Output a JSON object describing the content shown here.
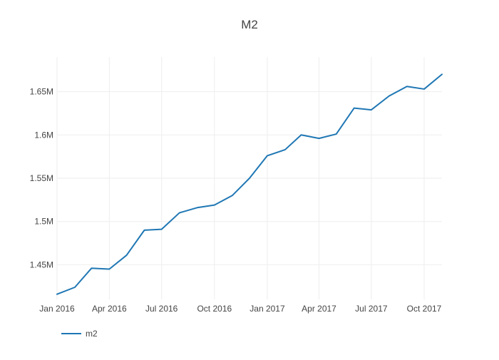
{
  "chart_data": {
    "type": "line",
    "title": "M2",
    "xlabel": "",
    "ylabel": "",
    "x_range": [
      "2016-01-01",
      "2017-11-01"
    ],
    "ylim": [
      1410000,
      1690000
    ],
    "grid": true,
    "legend_position": "bottom-left",
    "x_ticks": [
      {
        "date": "2016-01-01",
        "label": "Jan 2016"
      },
      {
        "date": "2016-04-01",
        "label": "Apr 2016"
      },
      {
        "date": "2016-07-01",
        "label": "Jul 2016"
      },
      {
        "date": "2016-10-01",
        "label": "Oct 2016"
      },
      {
        "date": "2017-01-01",
        "label": "Jan 2017"
      },
      {
        "date": "2017-04-01",
        "label": "Apr 2017"
      },
      {
        "date": "2017-07-01",
        "label": "Jul 2017"
      },
      {
        "date": "2017-10-01",
        "label": "Oct 2017"
      }
    ],
    "y_ticks": [
      {
        "value": 1450000,
        "label": "1.45M"
      },
      {
        "value": 1500000,
        "label": "1.5M"
      },
      {
        "value": 1550000,
        "label": "1.55M"
      },
      {
        "value": 1600000,
        "label": "1.6M"
      },
      {
        "value": 1650000,
        "label": "1.65M"
      }
    ],
    "series": [
      {
        "name": "m2",
        "color": "#1f77b4",
        "x": [
          "2016-01-01",
          "2016-02-01",
          "2016-03-01",
          "2016-04-01",
          "2016-05-01",
          "2016-06-01",
          "2016-07-01",
          "2016-08-01",
          "2016-09-01",
          "2016-10-01",
          "2016-11-01",
          "2016-12-01",
          "2017-01-01",
          "2017-02-01",
          "2017-03-01",
          "2017-04-01",
          "2017-05-01",
          "2017-06-01",
          "2017-07-01",
          "2017-08-01",
          "2017-09-01",
          "2017-10-01",
          "2017-11-01"
        ],
        "values": [
          1416000,
          1424000,
          1446000,
          1445000,
          1461000,
          1490000,
          1491000,
          1510000,
          1516000,
          1519000,
          1530000,
          1550000,
          1576000,
          1583000,
          1600000,
          1596000,
          1601000,
          1631000,
          1629000,
          1645000,
          1656000,
          1653000,
          1670000
        ]
      }
    ]
  }
}
